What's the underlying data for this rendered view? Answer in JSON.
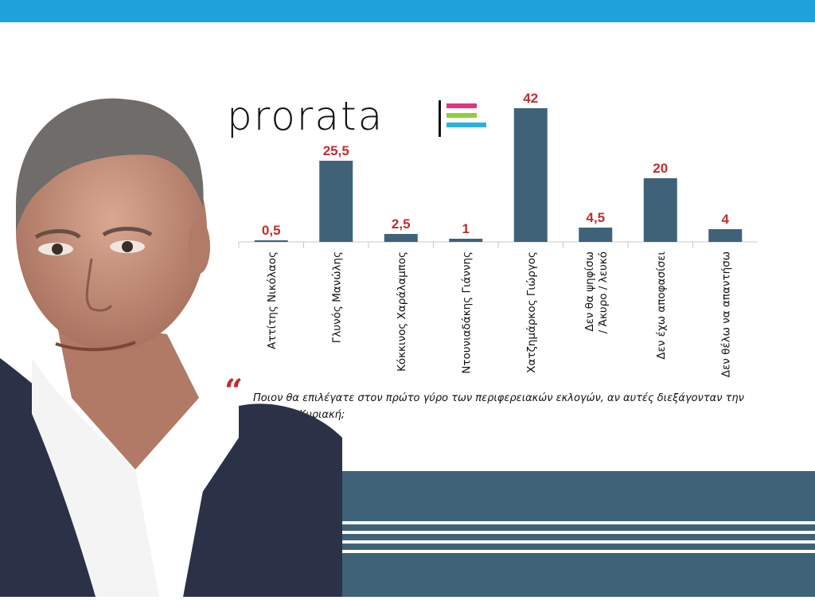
{
  "logo": {
    "text": "prorata",
    "line_colors": [
      "#e2357f",
      "#8fcf3a",
      "#27b3e0"
    ]
  },
  "colors": {
    "top_bar": "#1ea3dc",
    "bar_fill": "#3f6279",
    "value_label": "#c22d2d",
    "bottom_block": "#3f6279"
  },
  "chart_data": {
    "type": "bar",
    "categories": [
      "Αττίτης Νικόλαος",
      "Γλυνός Μανώλης",
      "Κόκκινος Χαράλαμπος",
      "Ντουνιαδάκης Γιάννης",
      "Χατζημάρκος Γιώργος",
      "Δεν θα ψηφίσω / Άκυρο / λευκό",
      "Δεν έχω αποφασίσει",
      "Δεν θέλω να απαντήσω"
    ],
    "category_lines": [
      [
        "Αττίτης Νικόλαος"
      ],
      [
        "Γλυνός Μανώλης"
      ],
      [
        "Κόκκινος Χαράλαμπος"
      ],
      [
        "Ντουνιαδάκης Γιάννης"
      ],
      [
        "Χατζημάρκος Γιώργος"
      ],
      [
        "Δεν θα ψηφίσω",
        "/ Άκυρο / λευκό"
      ],
      [
        "Δεν έχω αποφασίσει"
      ],
      [
        "Δεν θέλω να απαντήσω"
      ]
    ],
    "values": [
      0.5,
      25.5,
      2.5,
      1,
      42,
      4.5,
      20,
      4
    ],
    "value_labels": [
      "0,5",
      "25,5",
      "2,5",
      "1",
      "42",
      "4,5",
      "20",
      "4"
    ],
    "ylim": [
      0,
      42
    ],
    "grid": false,
    "legend": "none"
  },
  "question": {
    "text": "Ποιον θα επιλέγατε στον πρώτο γύρο των περιφερειακών εκλογών, αν αυτές διεξάγονταν την επόμενη Κυριακή;"
  }
}
